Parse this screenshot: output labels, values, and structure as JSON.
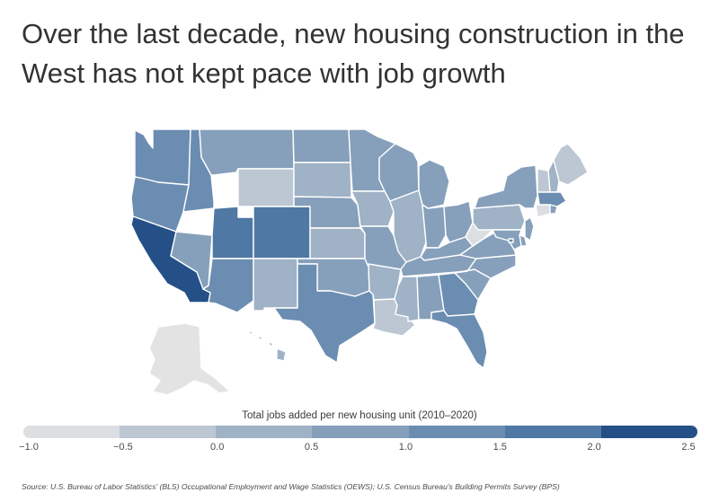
{
  "title": "Over the last decade, new housing construction in the West has not kept pace with job growth",
  "legend": {
    "title": "Total jobs added per new housing unit (2010–2020)",
    "ticks": [
      "−1.0",
      "−0.5",
      "0.0",
      "0.5",
      "1.0",
      "1.5",
      "2.0",
      "2.5"
    ],
    "colors": [
      "#dcdee1",
      "#bcc7d3",
      "#9fb2c6",
      "#86a0bb",
      "#6b8db1",
      "#4f78a4",
      "#245087"
    ]
  },
  "source": "Source:  U.S. Bureau of Labor Statistics' (BLS) Occupational Employment and Wage Statistics (OEWS); U.S. Census Bureau's Building Permits Survey (BPS)",
  "map": {
    "states": [
      {
        "code": "WA",
        "bin": 4
      },
      {
        "code": "OR",
        "bin": 4
      },
      {
        "code": "CA",
        "bin": 6
      },
      {
        "code": "NV",
        "bin": 3
      },
      {
        "code": "ID",
        "bin": 4
      },
      {
        "code": "MT",
        "bin": 3
      },
      {
        "code": "WY",
        "bin": 1
      },
      {
        "code": "UT",
        "bin": 5
      },
      {
        "code": "CO",
        "bin": 5
      },
      {
        "code": "AZ",
        "bin": 4
      },
      {
        "code": "NM",
        "bin": 2
      },
      {
        "code": "ND",
        "bin": 3
      },
      {
        "code": "SD",
        "bin": 2
      },
      {
        "code": "NE",
        "bin": 3
      },
      {
        "code": "KS",
        "bin": 2
      },
      {
        "code": "OK",
        "bin": 3
      },
      {
        "code": "TX",
        "bin": 4
      },
      {
        "code": "MN",
        "bin": 3
      },
      {
        "code": "IA",
        "bin": 2
      },
      {
        "code": "MO",
        "bin": 3
      },
      {
        "code": "AR",
        "bin": 2
      },
      {
        "code": "LA",
        "bin": 1
      },
      {
        "code": "WI",
        "bin": 3
      },
      {
        "code": "IL",
        "bin": 2
      },
      {
        "code": "MI",
        "bin": 3
      },
      {
        "code": "IN",
        "bin": 3
      },
      {
        "code": "OH",
        "bin": 3
      },
      {
        "code": "KY",
        "bin": 3
      },
      {
        "code": "TN",
        "bin": 3
      },
      {
        "code": "MS",
        "bin": 2
      },
      {
        "code": "AL",
        "bin": 3
      },
      {
        "code": "GA",
        "bin": 4
      },
      {
        "code": "FL",
        "bin": 4
      },
      {
        "code": "SC",
        "bin": 3
      },
      {
        "code": "NC",
        "bin": 3
      },
      {
        "code": "VA",
        "bin": 3
      },
      {
        "code": "WV",
        "bin": 0
      },
      {
        "code": "PA",
        "bin": 2
      },
      {
        "code": "NY",
        "bin": 3
      },
      {
        "code": "ME",
        "bin": 1
      },
      {
        "code": "NH",
        "bin": 2
      },
      {
        "code": "VT",
        "bin": 1
      },
      {
        "code": "MA",
        "bin": 4
      },
      {
        "code": "CT",
        "bin": 0
      },
      {
        "code": "RI",
        "bin": 3
      },
      {
        "code": "NJ",
        "bin": 3
      },
      {
        "code": "DE",
        "bin": 3
      },
      {
        "code": "MD",
        "bin": 3
      },
      {
        "code": "DC",
        "bin": 4
      },
      {
        "code": "AK",
        "bin": 0
      },
      {
        "code": "HI",
        "bin": 2
      }
    ]
  }
}
